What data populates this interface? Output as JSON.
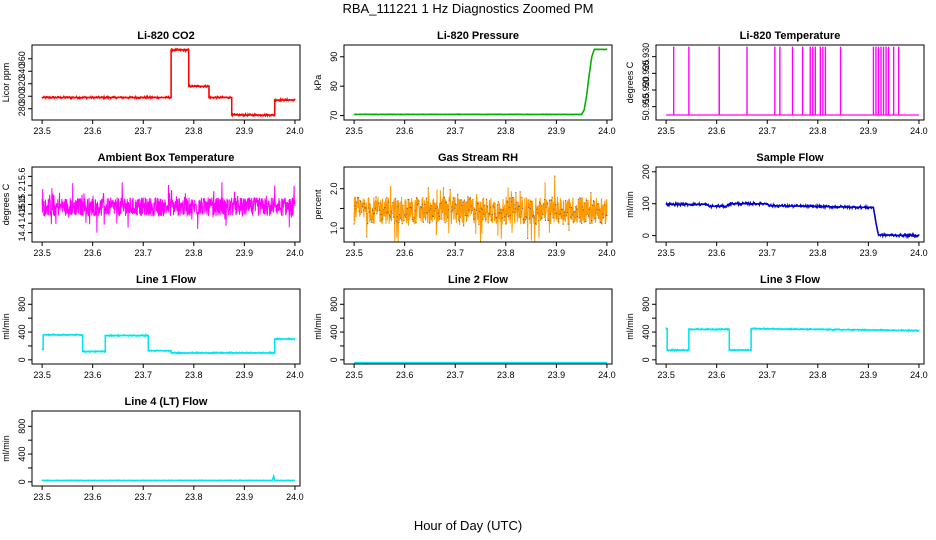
{
  "figure": {
    "title": "RBA_111221  1 Hz Diagnostics Zoomed PM",
    "xlabel": "Hour of Day (UTC)"
  },
  "chart_data": [
    {
      "type": "line",
      "title": "Li-820 CO2",
      "ylabel": "Licor ppm",
      "color": "#ff0000",
      "xlim": [
        23.48,
        24.01
      ],
      "ylim": [
        262,
        382
      ],
      "x_ticks": [
        23.5,
        23.6,
        23.7,
        23.8,
        23.9,
        24.0
      ],
      "x_tick_labels": [
        "23.5",
        "23.6",
        "23.7",
        "23.8",
        "23.9",
        "24.0"
      ],
      "y_ticks": [
        280,
        300,
        320,
        340,
        360
      ],
      "y_tick_labels": [
        "280",
        "300",
        "320",
        "340",
        "360"
      ],
      "x": [
        23.5,
        23.755,
        23.755,
        23.79,
        23.79,
        23.83,
        23.83,
        23.875,
        23.875,
        23.96,
        23.96,
        24.0
      ],
      "y": [
        298,
        298,
        374,
        374,
        316,
        316,
        298,
        298,
        270,
        270,
        294,
        294
      ],
      "noise": 2
    },
    {
      "type": "line",
      "title": "Li-820 Pressure",
      "ylabel": "kPa",
      "color": "#00b000",
      "xlim": [
        23.48,
        24.01
      ],
      "ylim": [
        68.5,
        94
      ],
      "x_ticks": [
        23.5,
        23.6,
        23.7,
        23.8,
        23.9,
        24.0
      ],
      "x_tick_labels": [
        "23.5",
        "23.6",
        "23.7",
        "23.8",
        "23.9",
        "24.0"
      ],
      "y_ticks": [
        70,
        80,
        90
      ],
      "y_tick_labels": [
        "70",
        "80",
        "90"
      ],
      "x": [
        23.5,
        23.95,
        23.955,
        23.96,
        23.965,
        23.97,
        23.975,
        24.0
      ],
      "y": [
        70.4,
        70.4,
        72,
        77,
        84,
        90,
        92.5,
        92.5
      ],
      "noise": 0.15
    },
    {
      "type": "line",
      "title": "Li-820 Temperature",
      "ylabel": "degrees C",
      "color": "#ff00ff",
      "xlim": [
        23.48,
        24.01
      ],
      "ylim": [
        50.911,
        50.9335
      ],
      "x_ticks": [
        23.5,
        23.6,
        23.7,
        23.8,
        23.9,
        24.0
      ],
      "x_tick_labels": [
        "23.5",
        "23.6",
        "23.7",
        "23.8",
        "23.9",
        "24.0"
      ],
      "y_ticks": [
        50.915,
        50.92,
        50.925,
        50.93
      ],
      "y_tick_labels": [
        "50.915",
        "50.920",
        "50.925",
        "50.930"
      ],
      "baseline": 50.9125,
      "spike_top": 50.933,
      "spike_x": [
        23.515,
        23.545,
        23.605,
        23.605,
        23.66,
        23.715,
        23.725,
        23.75,
        23.77,
        23.785,
        23.79,
        23.795,
        23.805,
        23.81,
        23.815,
        23.845,
        23.91,
        23.915,
        23.92,
        23.925,
        23.93,
        23.935,
        23.94,
        23.95,
        23.96
      ]
    },
    {
      "type": "line",
      "title": "Ambient Box Temperature",
      "ylabel": "degrees C",
      "color": "#ff00ff",
      "xlim": [
        23.48,
        24.01
      ],
      "ylim": [
        14.2,
        15.8
      ],
      "x_ticks": [
        23.5,
        23.6,
        23.7,
        23.8,
        23.9,
        24.0
      ],
      "x_tick_labels": [
        "23.5",
        "23.6",
        "23.7",
        "23.8",
        "23.9",
        "24.0"
      ],
      "y_ticks": [
        14.4,
        14.6,
        14.8,
        15.0,
        15.2,
        15.4,
        15.6
      ],
      "y_tick_labels": [
        "14.4",
        "",
        "14.8",
        "15.0",
        "15.2",
        "",
        "15.6"
      ],
      "center": 14.95,
      "spread": 0.2,
      "outlier": 0.4
    },
    {
      "type": "line",
      "title": "Gas Stream RH",
      "ylabel": "percent",
      "color": "#ff9900",
      "color2": "#666666",
      "xlim": [
        23.48,
        24.01
      ],
      "ylim": [
        0.65,
        2.55
      ],
      "x_ticks": [
        23.5,
        23.6,
        23.7,
        23.8,
        23.9,
        24.0
      ],
      "x_tick_labels": [
        "23.5",
        "23.6",
        "23.7",
        "23.8",
        "23.9",
        "24.0"
      ],
      "y_ticks": [
        1.0,
        1.5,
        2.0
      ],
      "y_tick_labels": [
        "1.0",
        "",
        "2.0"
      ],
      "center": 1.45,
      "spread": 0.35,
      "outlier": 0.6
    },
    {
      "type": "line",
      "title": "Sample Flow",
      "ylabel": "ml/min",
      "color": "#0000cc",
      "xlim": [
        23.48,
        24.01
      ],
      "ylim": [
        -20,
        215
      ],
      "x_ticks": [
        23.5,
        23.6,
        23.7,
        23.8,
        23.9,
        24.0
      ],
      "x_tick_labels": [
        "23.5",
        "23.6",
        "23.7",
        "23.8",
        "23.9",
        "24.0"
      ],
      "y_ticks": [
        0,
        100,
        200
      ],
      "y_tick_labels": [
        "0",
        "100",
        "200"
      ],
      "x": [
        23.5,
        23.58,
        23.585,
        23.62,
        23.625,
        23.7,
        23.705,
        23.91,
        23.915,
        23.92,
        24.0
      ],
      "y": [
        98,
        98,
        92,
        92,
        100,
        100,
        94,
        88,
        40,
        2,
        0
      ],
      "noise": 5
    },
    {
      "type": "line",
      "title": "Line 1 Flow",
      "ylabel": "ml/min",
      "color": "#00e5ee",
      "xlim": [
        23.48,
        24.01
      ],
      "ylim": [
        -60,
        1020
      ],
      "x_ticks": [
        23.5,
        23.6,
        23.7,
        23.8,
        23.9,
        24.0
      ],
      "x_tick_labels": [
        "23.5",
        "23.6",
        "23.7",
        "23.8",
        "23.9",
        "24.0"
      ],
      "y_ticks": [
        0,
        200,
        400,
        600,
        800
      ],
      "y_tick_labels": [
        "0",
        "",
        "400",
        "",
        "800"
      ],
      "x": [
        23.5,
        23.502,
        23.502,
        23.58,
        23.58,
        23.625,
        23.625,
        23.71,
        23.71,
        23.755,
        23.755,
        23.96,
        23.96,
        24.0
      ],
      "y": [
        150,
        150,
        360,
        360,
        120,
        120,
        350,
        350,
        130,
        130,
        100,
        100,
        300,
        300
      ],
      "noise": 12
    },
    {
      "type": "line",
      "title": "Line 2 Flow",
      "ylabel": "ml/min",
      "color": "#00e5ee",
      "xlim": [
        23.48,
        24.01
      ],
      "ylim": [
        -60,
        1020
      ],
      "x_ticks": [
        23.5,
        23.6,
        23.7,
        23.8,
        23.9,
        24.0
      ],
      "x_tick_labels": [
        "23.5",
        "23.6",
        "23.7",
        "23.8",
        "23.9",
        "24.0"
      ],
      "y_ticks": [
        0,
        200,
        400,
        600,
        800
      ],
      "y_tick_labels": [
        "0",
        "",
        "400",
        "",
        "800"
      ],
      "x": [
        23.5,
        24.0
      ],
      "y": [
        -40,
        -40
      ],
      "noise": 0
    },
    {
      "type": "line",
      "title": "Line 3 Flow",
      "ylabel": "ml/min",
      "color": "#00e5ee",
      "xlim": [
        23.48,
        24.01
      ],
      "ylim": [
        -60,
        1020
      ],
      "x_ticks": [
        23.5,
        23.6,
        23.7,
        23.8,
        23.9,
        24.0
      ],
      "x_tick_labels": [
        "23.5",
        "23.6",
        "23.7",
        "23.8",
        "23.9",
        "24.0"
      ],
      "y_ticks": [
        0,
        200,
        400,
        600,
        800
      ],
      "y_tick_labels": [
        "0",
        "",
        "400",
        "",
        "800"
      ],
      "x": [
        23.5,
        23.502,
        23.502,
        23.545,
        23.545,
        23.625,
        23.625,
        23.668,
        23.668,
        24.0
      ],
      "y": [
        450,
        450,
        140,
        140,
        440,
        440,
        140,
        140,
        450,
        420
      ],
      "noise": 12
    },
    {
      "type": "line",
      "title": "Line 4 (LT) Flow",
      "ylabel": "ml/min",
      "color": "#00e5ee",
      "xlim": [
        23.48,
        24.01
      ],
      "ylim": [
        -60,
        1020
      ],
      "x_ticks": [
        23.5,
        23.6,
        23.7,
        23.8,
        23.9,
        24.0
      ],
      "x_tick_labels": [
        "23.5",
        "23.6",
        "23.7",
        "23.8",
        "23.9",
        "24.0"
      ],
      "y_ticks": [
        0,
        200,
        400,
        600,
        800
      ],
      "y_tick_labels": [
        "0",
        "",
        "400",
        "",
        "800"
      ],
      "x": [
        23.5,
        23.955,
        23.958,
        23.96,
        24.0
      ],
      "y": [
        20,
        20,
        80,
        20,
        20
      ],
      "noise": 6
    }
  ]
}
